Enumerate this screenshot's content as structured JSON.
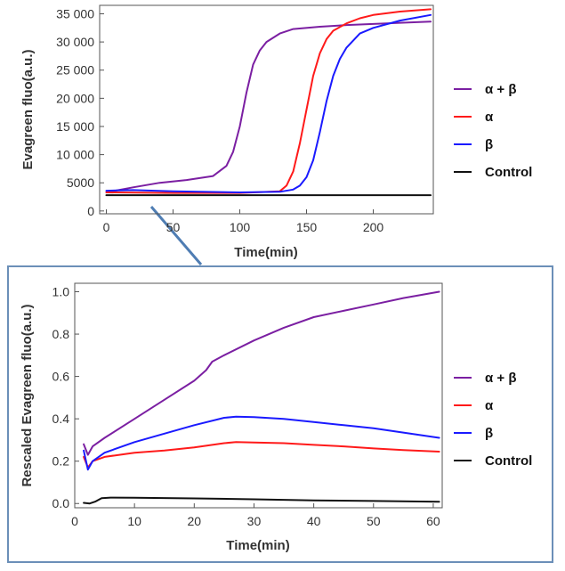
{
  "chart_data": [
    {
      "type": "line",
      "xlabel": "Time(min)",
      "ylabel": "Evagreen fluo(a.u.)",
      "xlim": [
        -5,
        245
      ],
      "ylim": [
        -500,
        36500
      ],
      "xticks": [
        0,
        50,
        100,
        150,
        200
      ],
      "yticks": [
        0,
        5000,
        10000,
        15000,
        20000,
        25000,
        30000,
        35000
      ],
      "ytick_labels": [
        "0",
        "5000",
        "10 000",
        "15 000",
        "20 000",
        "25 000",
        "30 000",
        "35 000"
      ],
      "grid": false,
      "legend": "right",
      "series": [
        {
          "name": "α + β",
          "color": "#7b1fa2",
          "x": [
            0,
            20,
            40,
            60,
            80,
            90,
            95,
            100,
            105,
            110,
            115,
            120,
            130,
            140,
            160,
            180,
            200,
            220,
            243
          ],
          "y": [
            3300,
            4200,
            5000,
            5500,
            6200,
            8000,
            10500,
            15000,
            21000,
            26000,
            28500,
            30000,
            31500,
            32300,
            32700,
            33000,
            33200,
            33400,
            33600
          ]
        },
        {
          "name": "α",
          "color": "#ff1a1a",
          "x": [
            0,
            50,
            100,
            130,
            135,
            140,
            145,
            150,
            155,
            160,
            165,
            170,
            180,
            190,
            200,
            220,
            243
          ],
          "y": [
            3300,
            3200,
            3200,
            3500,
            4500,
            7000,
            12000,
            18000,
            24000,
            28000,
            30500,
            32000,
            33300,
            34200,
            34800,
            35400,
            35800
          ]
        },
        {
          "name": "β",
          "color": "#1a1aff",
          "x": [
            0,
            20,
            50,
            100,
            130,
            140,
            145,
            150,
            155,
            160,
            165,
            170,
            175,
            180,
            190,
            200,
            220,
            243
          ],
          "y": [
            3600,
            3700,
            3500,
            3300,
            3400,
            3800,
            4500,
            6000,
            9000,
            14000,
            19500,
            24000,
            27000,
            29000,
            31500,
            32500,
            33800,
            34800
          ]
        },
        {
          "name": "Control",
          "color": "#111111",
          "x": [
            0,
            243
          ],
          "y": [
            2800,
            2800
          ]
        }
      ]
    },
    {
      "type": "line",
      "xlabel": "Time(min)",
      "ylabel": "Rescaled Evagreen fluo(a.u.)",
      "xlim": [
        0,
        61.5
      ],
      "ylim": [
        -0.02,
        1.04
      ],
      "xticks": [
        0,
        10,
        20,
        30,
        40,
        50,
        60
      ],
      "yticks": [
        0.0,
        0.2,
        0.4,
        0.6,
        0.8,
        1.0
      ],
      "ytick_labels": [
        "0.0",
        "0.2",
        "0.4",
        "0.6",
        "0.8",
        "1.0"
      ],
      "grid": false,
      "legend": "right",
      "series": [
        {
          "name": "α + β",
          "color": "#7b1fa2",
          "x": [
            1.5,
            2.2,
            3,
            5,
            10,
            15,
            20,
            22,
            23,
            25,
            30,
            35,
            40,
            45,
            50,
            55,
            61
          ],
          "y": [
            0.28,
            0.23,
            0.27,
            0.31,
            0.4,
            0.49,
            0.58,
            0.63,
            0.67,
            0.7,
            0.77,
            0.83,
            0.88,
            0.91,
            0.94,
            0.97,
            1.0
          ]
        },
        {
          "name": "α",
          "color": "#ff1a1a",
          "x": [
            1.5,
            2.2,
            3,
            5,
            10,
            15,
            20,
            25,
            27,
            30,
            35,
            40,
            45,
            50,
            55,
            61
          ],
          "y": [
            0.22,
            0.17,
            0.2,
            0.22,
            0.24,
            0.25,
            0.265,
            0.285,
            0.29,
            0.288,
            0.285,
            0.277,
            0.27,
            0.26,
            0.252,
            0.245
          ]
        },
        {
          "name": "β",
          "color": "#1a1aff",
          "x": [
            1.5,
            2.2,
            3,
            5,
            10,
            15,
            20,
            25,
            27,
            30,
            35,
            40,
            45,
            50,
            55,
            61
          ],
          "y": [
            0.25,
            0.16,
            0.2,
            0.24,
            0.29,
            0.33,
            0.37,
            0.405,
            0.41,
            0.408,
            0.4,
            0.385,
            0.37,
            0.355,
            0.335,
            0.31
          ]
        },
        {
          "name": "Control",
          "color": "#111111",
          "x": [
            1.5,
            2.5,
            3.5,
            4.5,
            6,
            10,
            20,
            30,
            40,
            50,
            61
          ],
          "y": [
            0.003,
            0.0,
            0.01,
            0.025,
            0.028,
            0.027,
            0.024,
            0.02,
            0.015,
            0.012,
            0.008
          ]
        }
      ]
    }
  ]
}
